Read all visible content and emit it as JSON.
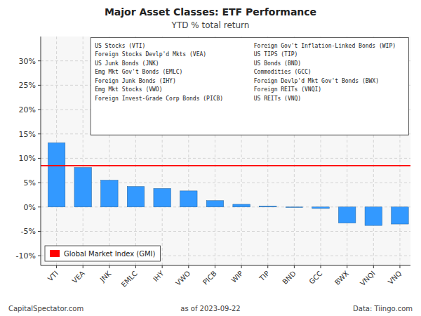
{
  "chart_data": {
    "type": "bar",
    "title": "Major Asset Classes: ETF Performance",
    "subtitle": "YTD % total return",
    "categories": [
      "VTI",
      "VEA",
      "JNK",
      "EMLC",
      "IHY",
      "VWO",
      "PICB",
      "WIP",
      "TIP",
      "BND",
      "GCC",
      "BWX",
      "VNQI",
      "VNQ"
    ],
    "values": [
      13.2,
      8.1,
      5.5,
      4.2,
      3.8,
      3.3,
      1.3,
      0.55,
      0.2,
      -0.1,
      -0.3,
      -3.3,
      -3.8,
      -3.5
    ],
    "color": "#3399FF",
    "reference_line": {
      "value": 8.5,
      "color": "#FF0000",
      "label": "Global Market Index (GMI)"
    },
    "ylim": [
      -12,
      35
    ],
    "yticks": [
      {
        "value": -10,
        "label": "-10%"
      },
      {
        "value": -5,
        "label": "-5%"
      },
      {
        "value": 0,
        "label": "0%"
      },
      {
        "value": 5,
        "label": "5%"
      },
      {
        "value": 10,
        "label": "10%"
      },
      {
        "value": 15,
        "label": "15%"
      },
      {
        "value": 20,
        "label": "20%"
      },
      {
        "value": 25,
        "label": "25%"
      },
      {
        "value": 30,
        "label": "30%"
      }
    ],
    "grid": true,
    "legend": "lower left",
    "annotations_left": [
      "US Stocks (VTI)",
      "Foreign Stocks Devlp'd Mkts (VEA)",
      "US Junk Bonds (JNK)",
      "Emg Mkt Gov't Bonds (EMLC)",
      "Foreign Junk Bonds (IHY)",
      "Emg Mkt Stocks (VWO)",
      "Foreign Invest-Grade Corp Bonds (PICB)"
    ],
    "annotations_right": [
      "Foreign Gov't Inflation-Linked Bonds (WIP)",
      "US TIPS (TIP)",
      "US Bonds (BND)",
      "Commodities (GCC)",
      "Foreign Devlp'd Mkt Gov't Bonds (BWX)",
      "Foreign REITs (VNQI)",
      "US REITs (VNQ)"
    ],
    "footer": [
      "CapitalSpectator.com",
      "as of  2023-09-22",
      "Data: Tiingo.com"
    ]
  }
}
